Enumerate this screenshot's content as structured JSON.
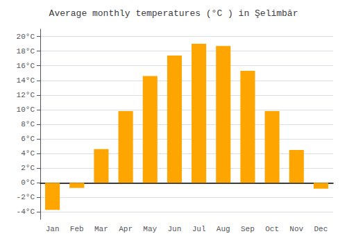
{
  "chart_data": {
    "type": "bar",
    "title": "Average monthly temperatures (°C ) in Şelimbăr",
    "categories": [
      "Jan",
      "Feb",
      "Mar",
      "Apr",
      "May",
      "Jun",
      "Jul",
      "Aug",
      "Sep",
      "Oct",
      "Nov",
      "Dec"
    ],
    "values": [
      -3.7,
      -0.7,
      4.6,
      9.8,
      14.6,
      17.4,
      19.0,
      18.7,
      15.3,
      9.8,
      4.5,
      -0.8
    ],
    "color": "#FFA500",
    "ylim": [
      -5,
      21
    ],
    "yticks": [
      {
        "value": -4,
        "label": "-4°C"
      },
      {
        "value": -2,
        "label": "-2°C"
      },
      {
        "value": 0,
        "label": "0°C"
      },
      {
        "value": 2,
        "label": "2°C"
      },
      {
        "value": 4,
        "label": "4°C"
      },
      {
        "value": 6,
        "label": "6°C"
      },
      {
        "value": 8,
        "label": "8°C"
      },
      {
        "value": 10,
        "label": "10°C"
      },
      {
        "value": 12,
        "label": "12°C"
      },
      {
        "value": 14,
        "label": "14°C"
      },
      {
        "value": 16,
        "label": "16°C"
      },
      {
        "value": 18,
        "label": "18°C"
      },
      {
        "value": 20,
        "label": "20°C"
      }
    ],
    "grid": true
  }
}
